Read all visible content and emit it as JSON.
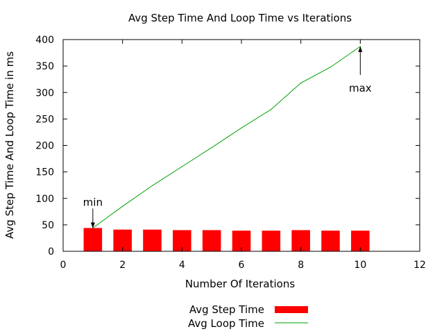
{
  "chart_data": {
    "type": "bar+line",
    "title": "Avg Step Time And Loop Time vs Iterations",
    "xlabel": "Number Of Iterations",
    "ylabel": "Avg Step Time And Loop Time in ms",
    "xlim": [
      0,
      12
    ],
    "ylim": [
      0,
      400
    ],
    "xticks": [
      0,
      2,
      4,
      6,
      8,
      10,
      12
    ],
    "yticks": [
      0,
      50,
      100,
      150,
      200,
      250,
      300,
      350,
      400
    ],
    "grid": false,
    "legend_position": "bottom-center",
    "series": [
      {
        "name": "Avg Step Time",
        "type": "bar",
        "color": "#ff0000",
        "x": [
          1,
          2,
          3,
          4,
          5,
          6,
          7,
          8,
          9,
          10
        ],
        "values": [
          44,
          41,
          41,
          40,
          40,
          39,
          39,
          40,
          39,
          39
        ]
      },
      {
        "name": "Avg Loop Time",
        "type": "line",
        "color": "#00a000",
        "x": [
          1,
          2,
          3,
          4,
          5,
          6,
          7,
          8,
          9,
          10
        ],
        "values": [
          44,
          85,
          124,
          160,
          196,
          233,
          268,
          318,
          348,
          387
        ]
      }
    ],
    "annotations": [
      {
        "text": "min",
        "x": 1,
        "y": 44,
        "placement": "above"
      },
      {
        "text": "max",
        "x": 10,
        "y": 387,
        "placement": "below"
      }
    ]
  }
}
